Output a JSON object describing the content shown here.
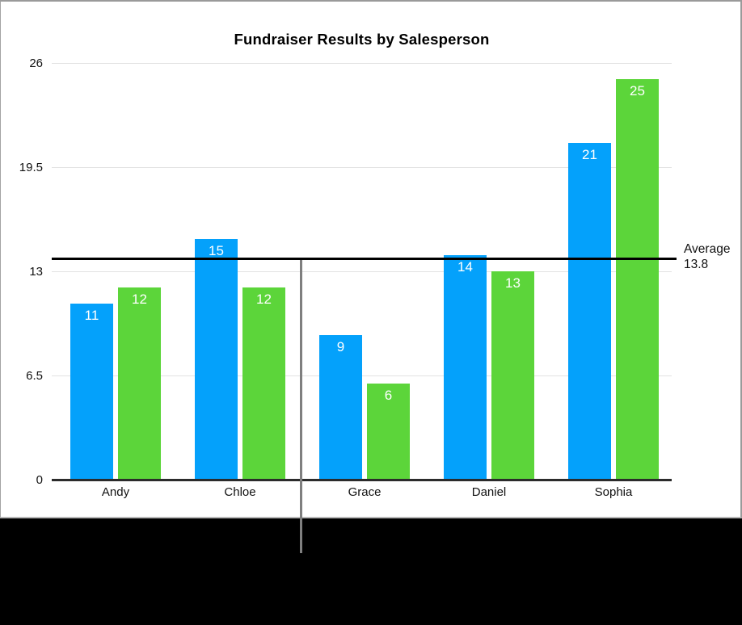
{
  "ui": {
    "card_border_color": "#9a9a9a",
    "letterbox_color": "#000000",
    "background_color": "#ffffff"
  },
  "chart_data": {
    "type": "bar",
    "title": "Fundraiser Results by Salesperson",
    "categories": [
      "Andy",
      "Chloe",
      "Grace",
      "Daniel",
      "Sophia"
    ],
    "series": [
      {
        "name": "series-blue",
        "color": "#04a1fb",
        "values": [
          11,
          15,
          9,
          14,
          21
        ]
      },
      {
        "name": "series-green",
        "color": "#5cd53a",
        "values": [
          12,
          12,
          6,
          13,
          25
        ]
      }
    ],
    "bar_value_labels_shown": true,
    "ylim": [
      0,
      26
    ],
    "y_ticks": [
      0,
      6.5,
      13,
      19.5,
      26
    ],
    "y_tick_labels": [
      "0",
      "6.5",
      "13",
      "19.5",
      "26"
    ],
    "xlabel": "",
    "ylabel": "",
    "grid": true,
    "legend": "none",
    "gridline_color": "#e2e2e2",
    "axis_line_color": "#2b2b2b",
    "text_color": "#111111",
    "average_line": {
      "value": 13.8,
      "color": "#000000",
      "label_lines": [
        "Average",
        "13.8"
      ]
    },
    "vertical_marker_line": {
      "position_between": [
        "Chloe",
        "Grace"
      ],
      "color": "#7f7f7f"
    }
  }
}
